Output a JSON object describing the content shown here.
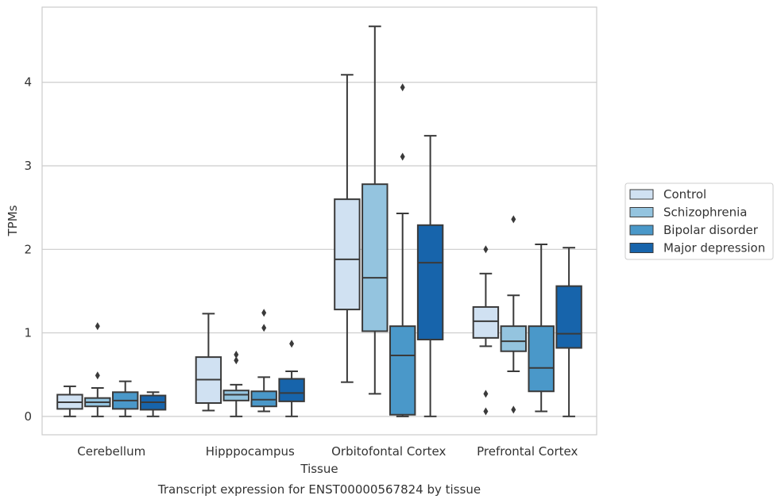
{
  "caption": "Transcript expression for ENST00000567824 by tissue",
  "chart_data": {
    "type": "box",
    "xlabel": "Tissue",
    "ylabel": "TPMs",
    "ylim": [
      -0.22,
      4.9
    ],
    "yticks": [
      0,
      1,
      2,
      3,
      4
    ],
    "grid": "y",
    "legend_position": "right",
    "categories": [
      "Cerebellum",
      "Hipppocampus",
      "Orbitofontal Cortex",
      "Prefrontal Cortex"
    ],
    "series": [
      {
        "name": "Control",
        "color": "#d0e1f2",
        "boxes": [
          {
            "whislo": 0.0,
            "q1": 0.09,
            "med": 0.17,
            "q3": 0.26,
            "whishi": 0.36,
            "fliers": []
          },
          {
            "whislo": 0.07,
            "q1": 0.16,
            "med": 0.44,
            "q3": 0.71,
            "whishi": 1.23,
            "fliers": []
          },
          {
            "whislo": 0.41,
            "q1": 1.28,
            "med": 1.88,
            "q3": 2.6,
            "whishi": 4.09,
            "fliers": []
          },
          {
            "whislo": 0.84,
            "q1": 0.94,
            "med": 1.14,
            "q3": 1.31,
            "whishi": 1.71,
            "fliers": [
              2.0,
              0.27,
              0.06
            ]
          }
        ]
      },
      {
        "name": "Schizophrenia",
        "color": "#94c4df",
        "boxes": [
          {
            "whislo": 0.0,
            "q1": 0.12,
            "med": 0.17,
            "q3": 0.22,
            "whishi": 0.34,
            "fliers": [
              1.08,
              0.49
            ]
          },
          {
            "whislo": 0.0,
            "q1": 0.19,
            "med": 0.26,
            "q3": 0.31,
            "whishi": 0.38,
            "fliers": [
              0.74,
              0.67
            ]
          },
          {
            "whislo": 0.27,
            "q1": 1.02,
            "med": 1.66,
            "q3": 2.78,
            "whishi": 4.67,
            "fliers": []
          },
          {
            "whislo": 0.54,
            "q1": 0.78,
            "med": 0.9,
            "q3": 1.08,
            "whishi": 1.45,
            "fliers": [
              2.36,
              0.08
            ]
          }
        ]
      },
      {
        "name": "Bipolar disorder",
        "color": "#4a98c9",
        "boxes": [
          {
            "whislo": 0.0,
            "q1": 0.09,
            "med": 0.19,
            "q3": 0.29,
            "whishi": 0.42,
            "fliers": []
          },
          {
            "whislo": 0.06,
            "q1": 0.12,
            "med": 0.2,
            "q3": 0.3,
            "whishi": 0.47,
            "fliers": [
              1.24,
              1.06
            ]
          },
          {
            "whislo": 0.0,
            "q1": 0.02,
            "med": 0.73,
            "q3": 1.08,
            "whishi": 2.43,
            "fliers": [
              3.94,
              3.11
            ]
          },
          {
            "whislo": 0.06,
            "q1": 0.3,
            "med": 0.58,
            "q3": 1.08,
            "whishi": 2.06,
            "fliers": []
          }
        ]
      },
      {
        "name": "Major depression",
        "color": "#1764ab",
        "boxes": [
          {
            "whislo": 0.0,
            "q1": 0.08,
            "med": 0.17,
            "q3": 0.25,
            "whishi": 0.29,
            "fliers": []
          },
          {
            "whislo": 0.0,
            "q1": 0.18,
            "med": 0.28,
            "q3": 0.45,
            "whishi": 0.54,
            "fliers": [
              0.87
            ]
          },
          {
            "whislo": 0.0,
            "q1": 0.92,
            "med": 1.84,
            "q3": 2.29,
            "whishi": 3.36,
            "fliers": []
          },
          {
            "whislo": 0.0,
            "q1": 0.82,
            "med": 0.99,
            "q3": 1.56,
            "whishi": 2.02,
            "fliers": []
          }
        ]
      }
    ]
  }
}
